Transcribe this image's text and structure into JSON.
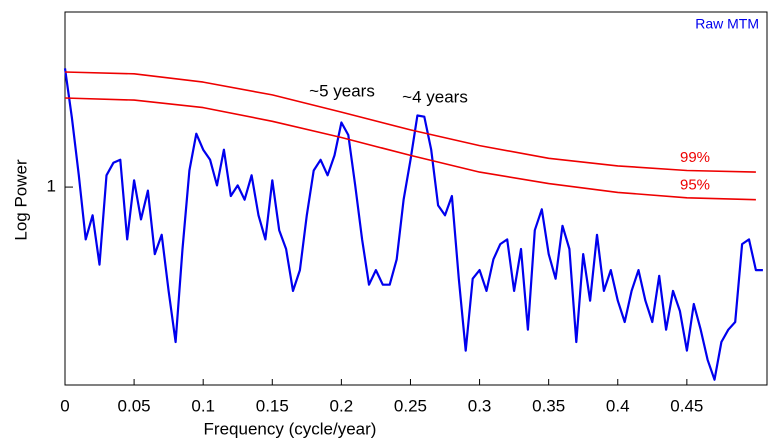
{
  "chart_data": {
    "type": "line",
    "xlabel": "Frequency (cycle/year)",
    "ylabel": "Log Power",
    "log_y": true,
    "xlim": [
      0,
      0.508
    ],
    "ylim": [
      0.32,
      2.74
    ],
    "xticks": [
      0,
      0.05,
      0.1,
      0.15,
      0.2,
      0.25,
      0.3,
      0.35,
      0.4,
      0.45
    ],
    "yticks": [
      1
    ],
    "annotations": [
      "~5 years",
      "~4 years"
    ],
    "series": [
      {
        "name": "Raw MTM",
        "color": "#0000ee",
        "x": [
          0,
          0.005,
          0.01,
          0.015,
          0.02,
          0.025,
          0.03,
          0.035,
          0.04,
          0.045,
          0.05,
          0.055,
          0.06,
          0.065,
          0.07,
          0.075,
          0.08,
          0.085,
          0.09,
          0.095,
          0.1,
          0.105,
          0.11,
          0.115,
          0.12,
          0.125,
          0.13,
          0.135,
          0.14,
          0.145,
          0.15,
          0.155,
          0.16,
          0.165,
          0.17,
          0.175,
          0.18,
          0.185,
          0.19,
          0.195,
          0.2,
          0.205,
          0.21,
          0.215,
          0.22,
          0.225,
          0.23,
          0.235,
          0.24,
          0.245,
          0.25,
          0.255,
          0.26,
          0.265,
          0.27,
          0.275,
          0.28,
          0.285,
          0.29,
          0.295,
          0.3,
          0.305,
          0.31,
          0.315,
          0.32,
          0.325,
          0.33,
          0.335,
          0.34,
          0.345,
          0.35,
          0.355,
          0.36,
          0.365,
          0.37,
          0.375,
          0.38,
          0.385,
          0.39,
          0.395,
          0.4,
          0.405,
          0.41,
          0.415,
          0.42,
          0.425,
          0.43,
          0.435,
          0.44,
          0.445,
          0.45,
          0.455,
          0.46,
          0.465,
          0.47,
          0.475,
          0.48,
          0.485,
          0.49,
          0.495,
          0.5,
          0.505
        ],
        "values": [
          1.98,
          1.49,
          1.07,
          0.74,
          0.85,
          0.64,
          1.07,
          1.15,
          1.17,
          0.74,
          1.04,
          0.83,
          0.98,
          0.68,
          0.76,
          0.55,
          0.41,
          0.7,
          1.1,
          1.36,
          1.24,
          1.17,
          1.01,
          1.24,
          0.95,
          1.01,
          0.93,
          1.07,
          0.85,
          0.74,
          1.04,
          0.78,
          0.7,
          0.55,
          0.62,
          0.85,
          1.1,
          1.17,
          1.07,
          1.2,
          1.45,
          1.35,
          1.01,
          0.74,
          0.57,
          0.62,
          0.57,
          0.57,
          0.66,
          0.93,
          1.17,
          1.51,
          1.5,
          1.24,
          0.9,
          0.85,
          0.95,
          0.59,
          0.39,
          0.59,
          0.62,
          0.55,
          0.66,
          0.72,
          0.74,
          0.55,
          0.7,
          0.44,
          0.78,
          0.88,
          0.68,
          0.59,
          0.8,
          0.7,
          0.41,
          0.68,
          0.52,
          0.76,
          0.55,
          0.62,
          0.52,
          0.46,
          0.55,
          0.62,
          0.52,
          0.46,
          0.6,
          0.44,
          0.55,
          0.49,
          0.39,
          0.51,
          0.44,
          0.37,
          0.33,
          0.41,
          0.44,
          0.46,
          0.72,
          0.74,
          0.62,
          0.62
        ]
      },
      {
        "name": "99%",
        "color": "#ee0000",
        "x": [
          0,
          0.05,
          0.1,
          0.15,
          0.2,
          0.25,
          0.3,
          0.35,
          0.4,
          0.45,
          0.5
        ],
        "values": [
          1.94,
          1.92,
          1.83,
          1.7,
          1.54,
          1.39,
          1.27,
          1.18,
          1.13,
          1.1,
          1.09
        ]
      },
      {
        "name": "95%",
        "color": "#ee0000",
        "x": [
          0,
          0.05,
          0.1,
          0.15,
          0.2,
          0.25,
          0.3,
          0.35,
          0.4,
          0.45,
          0.5
        ],
        "values": [
          1.67,
          1.65,
          1.58,
          1.46,
          1.33,
          1.2,
          1.09,
          1.02,
          0.97,
          0.94,
          0.93
        ]
      }
    ]
  }
}
